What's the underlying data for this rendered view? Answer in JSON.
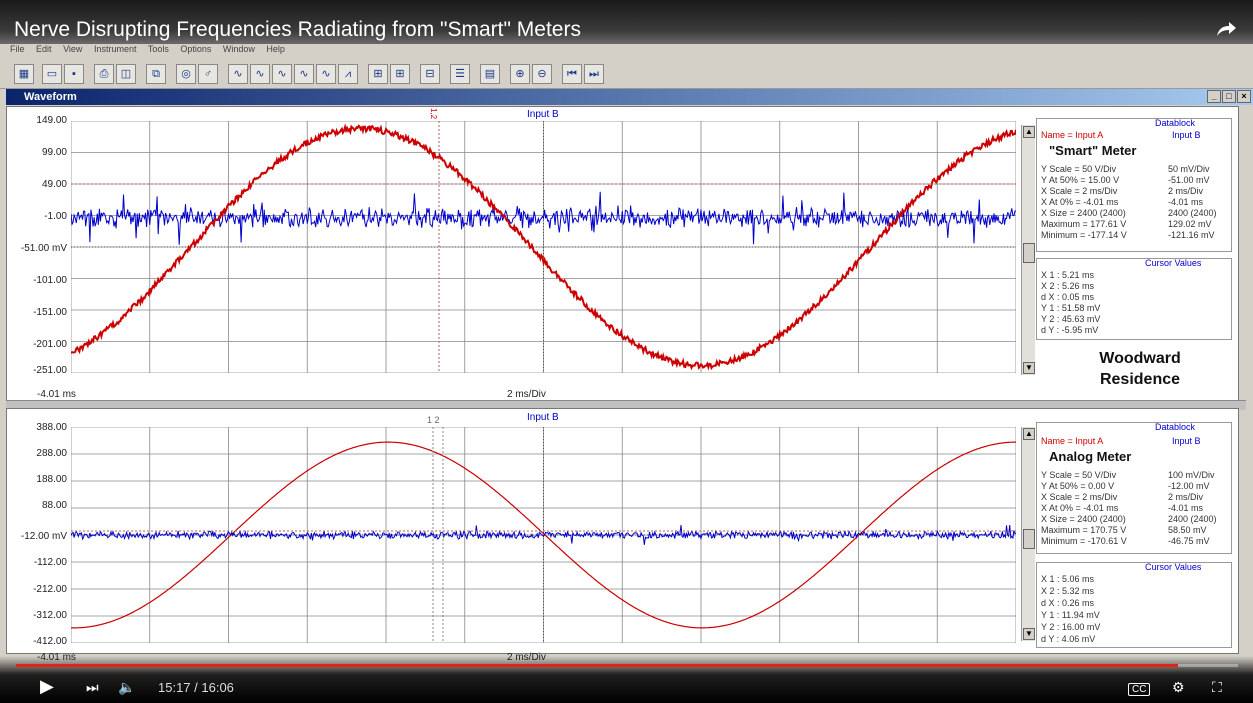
{
  "video": {
    "title": "Nerve Disrupting Frequencies Radiating from \"Smart\" Meters",
    "time": "15:17 / 16:06",
    "progress": 0.951
  },
  "menu": [
    "File",
    "Edit",
    "View",
    "Instrument",
    "Tools",
    "Options",
    "Window",
    "Help"
  ],
  "window": {
    "title": "Waveform"
  },
  "panel1": {
    "input_label": "Input B",
    "y_ticks": [
      "149.00",
      "99.00",
      "49.00",
      "-1.00",
      "-51.00 mV",
      "-101.00",
      "-151.00",
      "-201.00",
      "-251.00"
    ],
    "x_left": "-4.01 ms",
    "x_div": "2 ms/Div",
    "cursor_label": "1,2",
    "datablock": {
      "legend": "Datablock",
      "name_row": "Name   = Input A",
      "input_b": "Input B",
      "meter": "\"Smart\" Meter",
      "rows_a": [
        "Y Scale  =   50   V/Div",
        "Y At 50% =  15.00 V",
        "X Scale  =   2    ms/Div",
        "X At 0%  =   -4.01 ms",
        "X Size   = 2400 (2400)",
        "Maximum = 177.61 V",
        "Minimum = -177.14 V"
      ],
      "rows_b": [
        "50   mV/Div",
        "-51.00 mV",
        "2   ms/Div",
        "-4.01 ms",
        "2400 (2400)",
        "129.02 mV",
        "-121.16 mV"
      ],
      "cursor_legend": "Cursor Values",
      "cursor_rows": [
        "X 1 :    5.21 ms",
        "X 2 :    5.26 ms",
        "d X :    0.05 ms",
        "Y 1 :   51.58 mV",
        "Y 2 :   45.63 mV",
        "d Y :   -5.95 mV"
      ]
    },
    "residence": [
      "Woodward",
      "Residence"
    ]
  },
  "panel2": {
    "input_label": "Input B",
    "y_ticks": [
      "388.00",
      "288.00",
      "188.00",
      "88.00",
      "-12.00 mV",
      "-112.00",
      "-212.00",
      "-312.00",
      "-412.00"
    ],
    "x_left": "-4.01 ms",
    "x_div": "2 ms/Div",
    "cursor_label": "1 2",
    "datablock": {
      "legend": "Datablock",
      "name_row": "Name   = Input A",
      "input_b": "Input B",
      "meter": "Analog Meter",
      "rows_a": [
        "Y Scale  =   50   V/Div",
        "Y At 50% =   0.00 V",
        "X Scale  =   2    ms/Div",
        "X At 0%  =   -4.01 ms",
        "X Size   = 2400 (2400)",
        "Maximum = 170.75 V",
        "Minimum = -170.61 V"
      ],
      "rows_b": [
        "100   mV/Div",
        "-12.00 mV",
        "2   ms/Div",
        "-4.01 ms",
        "2400 (2400)",
        "58.50 mV",
        "-46.75 mV"
      ],
      "cursor_legend": "Cursor Values",
      "cursor_rows": [
        "X 1 :    5.06 ms",
        "X 2 :    5.32 ms",
        "d X :    0.26 ms",
        "Y 1 :   11.94 mV",
        "Y 2 :   16.00 mV",
        "d Y :    4.06 mV"
      ]
    }
  },
  "colors": {
    "input_a": "#cc0000",
    "input_b": "#0000cc",
    "progress": "#e62117"
  }
}
